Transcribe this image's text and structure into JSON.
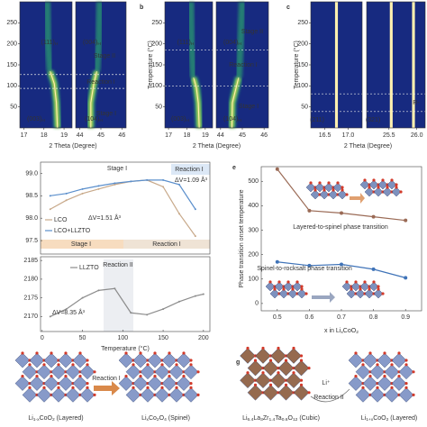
{
  "panel_labels": [
    "b",
    "c",
    "e",
    "g"
  ],
  "chart_data": [
    {
      "type": "heatmap",
      "xlabel": "2 Theta (Degree)",
      "ylim": [
        0,
        300
      ],
      "yticks": [
        50,
        100,
        150,
        200,
        250
      ],
      "hlines": [
        127,
        94
      ],
      "subplots": [
        {
          "xlim": [
            16.8,
            19.4
          ],
          "xticks": [
            17,
            18,
            19
          ]
        },
        {
          "xlim": [
            43.8,
            46.2
          ],
          "xticks": [
            44,
            45,
            46
          ]
        }
      ],
      "annotations": [
        [
          "(111)",
          "H"
        ],
        [
          "(004)",
          "H"
        ],
        "Stage II",
        "Reaction I",
        "Stage I",
        [
          "(003)",
          "H"
        ],
        [
          "(104)",
          "H"
        ]
      ]
    },
    {
      "type": "heatmap",
      "xlabel": "2 Theta (Degree)",
      "ylabel": "Temperature (°C)",
      "ylim": [
        0,
        300
      ],
      "yticks": [
        50,
        100,
        150,
        200,
        250
      ],
      "hlines": [
        185,
        100
      ],
      "subplots": [
        {
          "xlim": [
            16.8,
            19.4
          ],
          "xticks": [
            17,
            18,
            19
          ]
        },
        {
          "xlim": [
            43.8,
            46.2
          ],
          "xticks": [
            44,
            45,
            46
          ]
        }
      ],
      "annotations": [
        [
          "(111)",
          "H"
        ],
        [
          "(004)",
          "H"
        ],
        "Stage II",
        "Reaction I",
        "Stage I",
        [
          "(003)",
          "H"
        ],
        [
          "(104)",
          "H"
        ]
      ]
    },
    {
      "type": "heatmap",
      "xlabel": "2 Theta (Degree)",
      "ylabel": "Temperature (°C)",
      "ylim": [
        0,
        300
      ],
      "yticks": [
        50,
        100,
        150,
        200,
        250
      ],
      "hlines": [
        81,
        39
      ],
      "subplots": [
        {
          "xlim": [
            16.2,
            17.3
          ],
          "xticks": [
            16.5,
            {
              "value": 17,
              "label": "17.0"
            }
          ]
        },
        {
          "xlim": [
            25.1,
            26.15
          ],
          "xticks": [
            25.5,
            {
              "value": 26,
              "label": "26.0"
            }
          ]
        }
      ],
      "annotations": [
        "(211)",
        "(321)",
        "R-"
      ]
    },
    {
      "type": "line",
      "xlim": [
        -2,
        208
      ],
      "ylim": [
        97.2,
        99.25
      ],
      "yticks": [
        97.5,
        {
          "value": 98,
          "label": "98.0"
        },
        98.5,
        {
          "value": 99,
          "label": "99.0"
        }
      ],
      "x": [
        10,
        30,
        50,
        70,
        90,
        110,
        130,
        150,
        170,
        190
      ],
      "series": [
        {
          "name": "LCO",
          "color": "#c8a98a",
          "values": [
            98.2,
            98.4,
            98.55,
            98.65,
            98.75,
            98.82,
            98.85,
            98.7,
            98.1,
            97.6
          ]
        },
        {
          "name": "LCO+LLZTO",
          "color": "#5b8fcc",
          "values": [
            98.5,
            98.55,
            98.65,
            98.72,
            98.78,
            98.82,
            98.85,
            98.85,
            98.75,
            98.2
          ]
        }
      ],
      "annotations": [
        "Stage I",
        "Reaction I",
        "ΔV=1.09 Å³",
        "ΔV=1.51 Å³",
        "Stage I",
        "Reaction I"
      ]
    },
    {
      "type": "line",
      "xlabel": "Temperature (°C)",
      "xlim": [
        -2,
        208
      ],
      "xticks": [
        0,
        50,
        100,
        150,
        200
      ],
      "ylim": [
        2166,
        2186
      ],
      "yticks": [
        2170,
        2175,
        2180,
        2185
      ],
      "x": [
        10,
        30,
        50,
        70,
        90,
        110,
        130,
        150,
        170,
        190,
        200
      ],
      "series": [
        {
          "name": "LLZTO",
          "color": "#8c8c8c",
          "values": [
            2170,
            2172,
            2175,
            2177,
            2177.5,
            2171,
            2170.5,
            2172,
            2174,
            2175.5,
            2176
          ]
        }
      ],
      "annotations": [
        "Reaction II",
        "ΔV=8.35 Å³"
      ]
    },
    {
      "type": "line",
      "xlabel": [
        "x in Li",
        "x",
        "CoO",
        "2"
      ],
      "ylabel": "Phase transition onset temperature",
      "xlim": [
        0.45,
        0.95
      ],
      "xticks": [
        0.5,
        0.6,
        0.7,
        0.8,
        0.9
      ],
      "ylim": [
        -30,
        560
      ],
      "yticks": [
        0,
        100,
        200,
        300,
        400,
        500
      ],
      "x": [
        0.5,
        0.6,
        0.7,
        0.8,
        0.9
      ],
      "series": [
        {
          "color": "#9a6a55",
          "values": [
            550,
            380,
            370,
            355,
            340
          ]
        },
        {
          "color": "#3f73b8",
          "values": [
            170,
            155,
            160,
            140,
            105
          ]
        }
      ],
      "annotations": [
        "Spinel-to-rocksalt phase transition",
        "Layered-to-spinel phase transition"
      ]
    }
  ],
  "structures": {
    "labels": [
      "Reaction I",
      "Li⁺",
      "Reaction II"
    ],
    "captions": [
      [
        "Li",
        "1-x",
        "CoO",
        "2",
        " (Layered)"
      ],
      [
        "Li",
        "x",
        "Co",
        "2",
        "O",
        "4",
        " (Spinel)"
      ],
      [
        "Li",
        "6.4",
        "La",
        "3",
        "Zr",
        "1.4",
        "Ta",
        "0.6",
        "O",
        "12",
        " (Cubic)"
      ],
      [
        "Li",
        "1+x",
        "CoO",
        "2",
        " (Layered)"
      ]
    ]
  }
}
